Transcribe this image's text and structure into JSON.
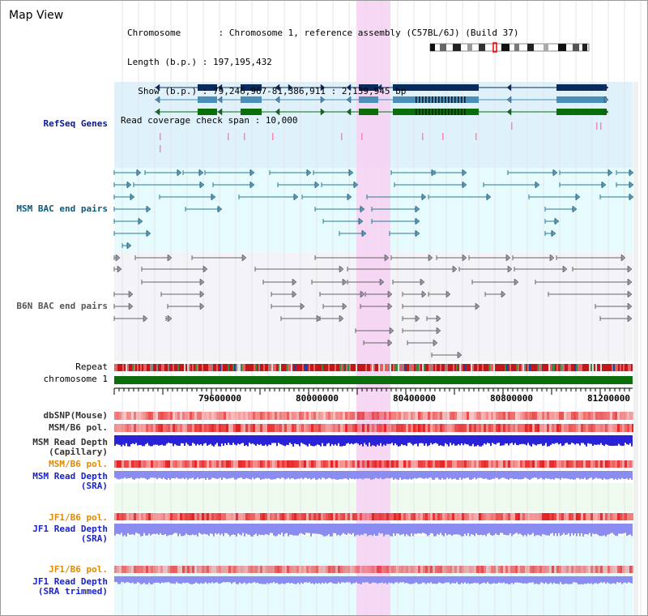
{
  "title": "Map View",
  "info": {
    "chromosome": "Chromosome       : Chromosome 1, reference assembly (C57BL/6J) (Build 37)",
    "length": "Length (b.p.) : 197,195,432",
    "show": "  Show (b.p.) : 79,246,967-81,386,911 : 2,139,945 bp",
    "coverage": "Read coverage check span : 10,000"
  },
  "tracks": {
    "refseq": "RefSeq Genes",
    "msm_bac": "MSM BAC end pairs",
    "b6n_bac": "B6N BAC end pairs",
    "repeat": "Repeat",
    "chromosome": "chromosome 1",
    "dbsnp": "dbSNP(Mouse)",
    "msm_b6_pol_1": "MSM/B6 pol.",
    "msm_read_depth_cap_1": "MSM Read Depth",
    "msm_read_depth_cap_2": "(Capillary)",
    "msm_b6_pol_2": "MSM/B6 pol.",
    "msm_read_depth_sra_1": "MSM Read Depth",
    "msm_read_depth_sra_2": "(SRA)",
    "jf1_b6_pol_1": "JF1/B6 pol.",
    "jf1_read_depth_sra_1": "JF1 Read Depth",
    "jf1_read_depth_sra_2": "(SRA)",
    "jf1_b6_pol_2": "JF1/B6 pol.",
    "jf1_read_depth_trim_1": "JF1 Read Depth",
    "jf1_read_depth_trim_2": "(SRA trimmed)"
  },
  "axis": {
    "ticks": [
      "79600000",
      "80000000",
      "80400000",
      "80800000",
      "81200000"
    ]
  },
  "colors": {
    "refseq_bg": "#dff1fb",
    "msm_bg": "#e6fbfd",
    "highlight": "#f6d1f2",
    "gene_navy": "#0a2a5e",
    "gene_steel": "#4a8fb8",
    "gene_green": "#0b6e0b",
    "bac_teal": "#2a7a94",
    "chrom_green": "#0b6e0b",
    "depth_blue": "#2a22d8",
    "depth_light": "#8a8cf0"
  }
}
